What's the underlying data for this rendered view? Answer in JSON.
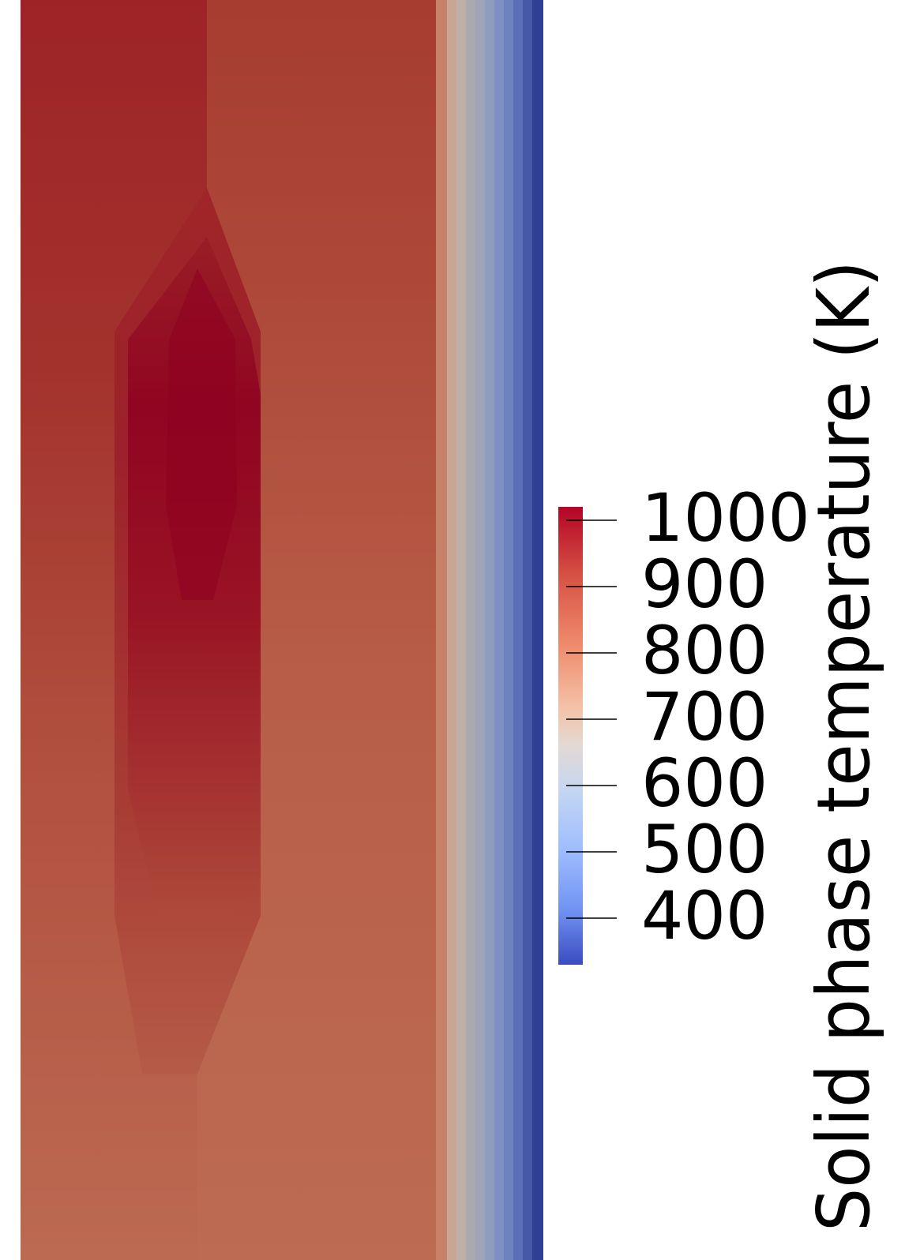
{
  "field": {
    "name": "Solid phase temperature",
    "units": "K",
    "colormap": "Cool to Warm",
    "range": [
      330,
      1020
    ],
    "colors": {
      "hot_core": "#8e0020",
      "hot_top": "#9d2126",
      "bulk": "#bb6a52",
      "bulk_upper": "#b04e3d",
      "wall_inner": "#d98d6e",
      "wall_mid": "#a3a4b0",
      "wall_outer": "#2f3f96"
    }
  },
  "legend": {
    "title": "Solid phase temperature (K)",
    "ticks": [
      {
        "value": 1000,
        "label": "1000"
      },
      {
        "value": 900,
        "label": "900"
      },
      {
        "value": 800,
        "label": "800"
      },
      {
        "value": 700,
        "label": "700"
      },
      {
        "value": 600,
        "label": "600"
      },
      {
        "value": 500,
        "label": "500"
      },
      {
        "value": 400,
        "label": "400"
      }
    ],
    "colorbar_stops": [
      "#b40426",
      "#dc5d4a",
      "#f4987a",
      "#f2cbb7",
      "#dddcdc",
      "#aac7fd",
      "#7b9ff9",
      "#3b4cc0"
    ]
  }
}
